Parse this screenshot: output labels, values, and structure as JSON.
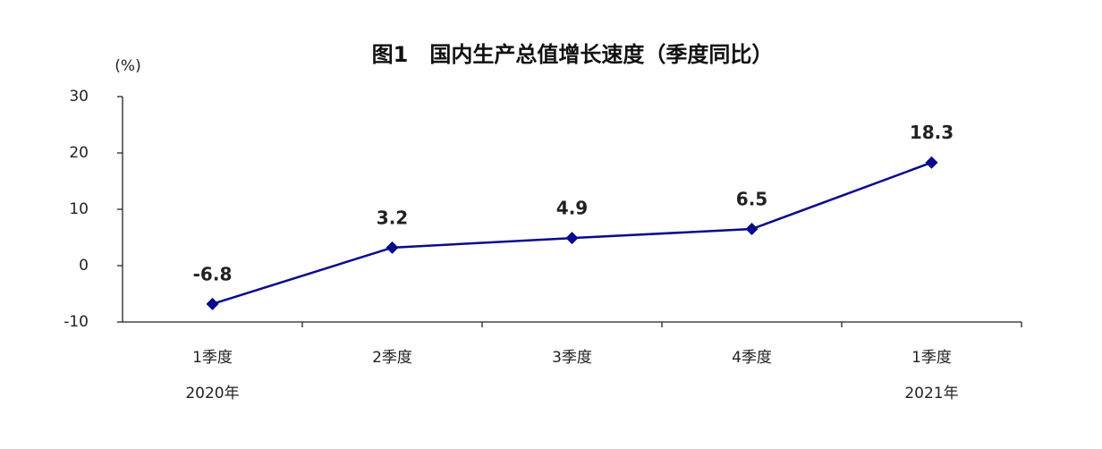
{
  "chart_data": {
    "type": "line",
    "title": "图1　国内生产总值增长速度（季度同比）",
    "y_unit": "(%)",
    "categories": [
      "1季度",
      "2季度",
      "3季度",
      "4季度",
      "1季度"
    ],
    "category_years": [
      "2020年",
      null,
      null,
      null,
      "2021年"
    ],
    "series": [
      {
        "name": "国内生产总值增长速度",
        "color": "#0a0a8c",
        "values": [
          -6.8,
          3.2,
          4.9,
          6.5,
          18.3
        ]
      }
    ],
    "ylim": [
      -10,
      30
    ],
    "yticks": [
      -10,
      0,
      10,
      20,
      30
    ],
    "grid": false,
    "data_labels": true
  }
}
